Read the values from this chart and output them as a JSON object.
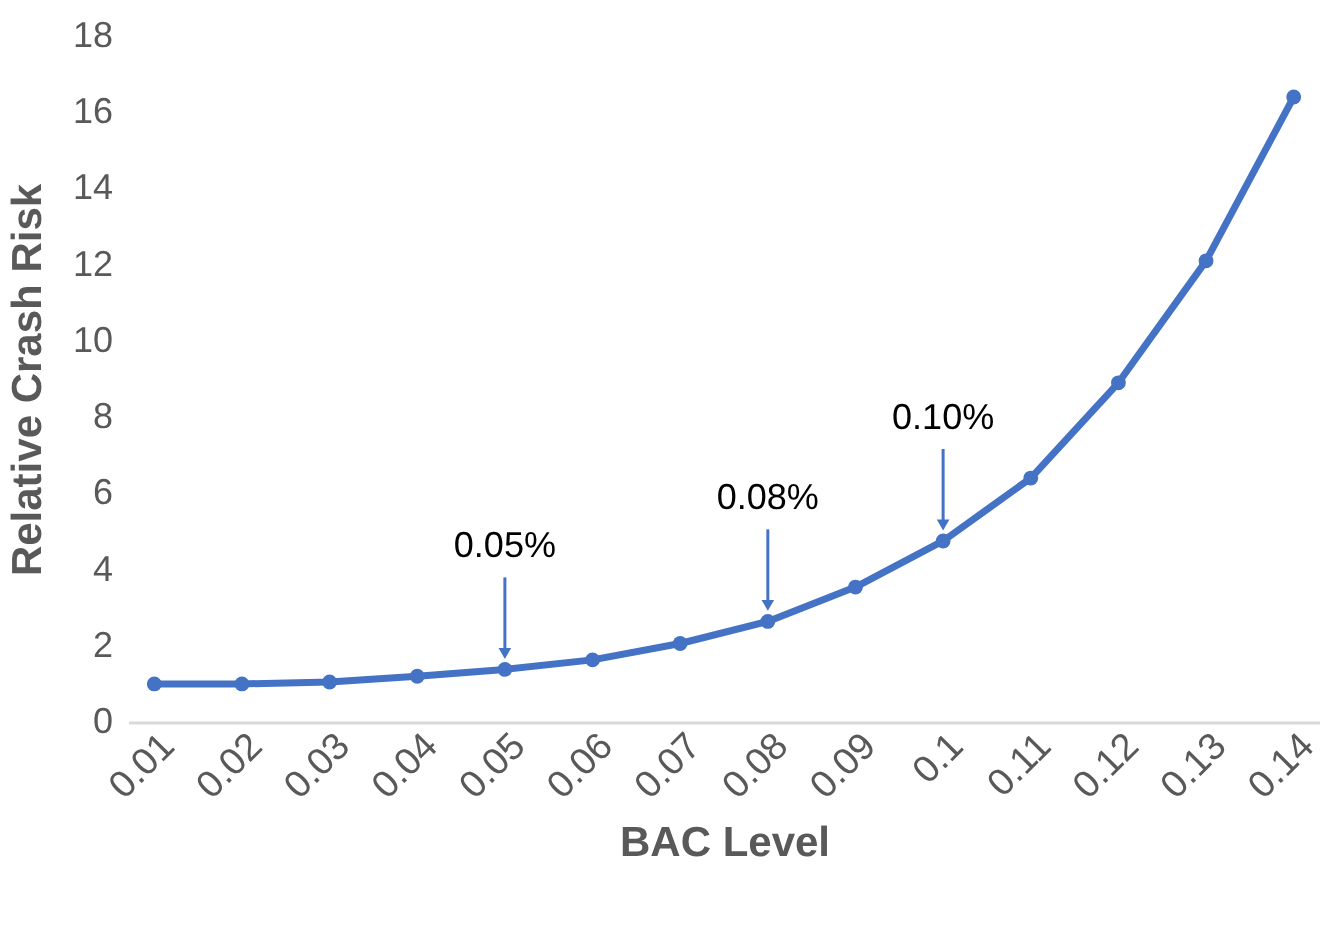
{
  "chart_data": {
    "type": "line",
    "xlabel": "BAC Level",
    "ylabel": "Relative Crash Risk",
    "categories": [
      "0.01",
      "0.02",
      "0.03",
      "0.04",
      "0.05",
      "0.06",
      "0.07",
      "0.08",
      "0.09",
      "0.1",
      "0.11",
      "0.12",
      "0.13",
      "0.14"
    ],
    "series": [
      {
        "color": "#4472c4",
        "values": [
          1.0,
          1.0,
          1.05,
          1.2,
          1.38,
          1.63,
          2.06,
          2.64,
          3.54,
          4.75,
          6.4,
          8.9,
          12.1,
          16.4
        ]
      }
    ],
    "ylim": [
      0,
      18
    ],
    "yticks": [
      0,
      2,
      4,
      6,
      8,
      10,
      12,
      14,
      16,
      18
    ],
    "marker": "circle",
    "line_style": "solid",
    "annotations": [
      {
        "text": "0.05%",
        "x": "0.05",
        "y": 1.38
      },
      {
        "text": "0.08%",
        "x": "0.08",
        "y": 2.64
      },
      {
        "text": "0.10%",
        "x": "0.1",
        "y": 4.75
      }
    ]
  }
}
